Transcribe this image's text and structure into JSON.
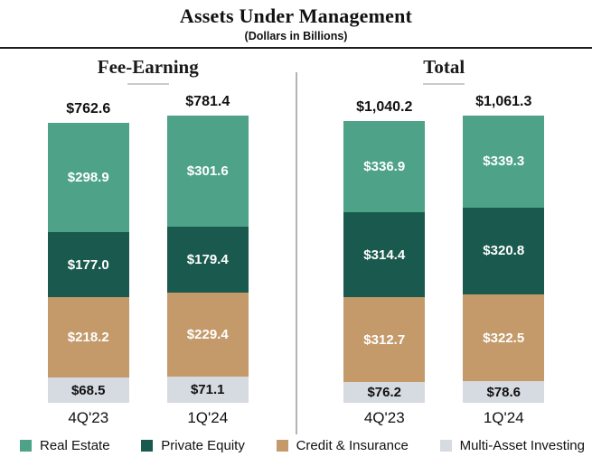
{
  "header": {
    "title": "Assets Under Management",
    "subtitle": "(Dollars in Billions)"
  },
  "colors": {
    "real_estate": "#4DA287",
    "private_equity": "#1A594E",
    "credit_insurance": "#C49A6B",
    "multi_asset": "#D6DAE1",
    "divider": "#B3B3B3",
    "top_rule": "#1C1C1C",
    "header_underline": "#CBCBCB"
  },
  "legend": [
    {
      "key": "real_estate",
      "label": "Real Estate"
    },
    {
      "key": "private_equity",
      "label": "Private Equity"
    },
    {
      "key": "credit_insurance",
      "label": "Credit & Insurance"
    },
    {
      "key": "multi_asset",
      "label": "Multi-Asset Investing"
    }
  ],
  "chart_data": {
    "type": "bar",
    "stacked": true,
    "unit": "USD billions",
    "title": "Assets Under Management",
    "subtitle": "(Dollars in Billions)",
    "legend_position": "bottom",
    "grid": false,
    "segment_order_top_to_bottom": [
      "real_estate",
      "private_equity",
      "credit_insurance",
      "multi_asset"
    ],
    "groups": [
      {
        "name": "Fee-Earning",
        "categories": [
          "4Q'23",
          "1Q'24"
        ],
        "bars": [
          {
            "category": "4Q'23",
            "total": 762.6,
            "total_label": "$762.6",
            "segments": [
              {
                "key": "real_estate",
                "name": "Real Estate",
                "value": 298.9,
                "label": "$298.9"
              },
              {
                "key": "private_equity",
                "name": "Private Equity",
                "value": 177.0,
                "label": "$177.0"
              },
              {
                "key": "credit_insurance",
                "name": "Credit & Insurance",
                "value": 218.2,
                "label": "$218.2"
              },
              {
                "key": "multi_asset",
                "name": "Multi-Asset Investing",
                "value": 68.5,
                "label": "$68.5"
              }
            ]
          },
          {
            "category": "1Q'24",
            "total": 781.4,
            "total_label": "$781.4",
            "segments": [
              {
                "key": "real_estate",
                "name": "Real Estate",
                "value": 301.6,
                "label": "$301.6"
              },
              {
                "key": "private_equity",
                "name": "Private Equity",
                "value": 179.4,
                "label": "$179.4"
              },
              {
                "key": "credit_insurance",
                "name": "Credit & Insurance",
                "value": 229.4,
                "label": "$229.4"
              },
              {
                "key": "multi_asset",
                "name": "Multi-Asset Investing",
                "value": 71.1,
                "label": "$71.1"
              }
            ]
          }
        ]
      },
      {
        "name": "Total",
        "categories": [
          "4Q'23",
          "1Q'24"
        ],
        "bars": [
          {
            "category": "4Q'23",
            "total": 1040.2,
            "total_label": "$1,040.2",
            "segments": [
              {
                "key": "real_estate",
                "name": "Real Estate",
                "value": 336.9,
                "label": "$336.9"
              },
              {
                "key": "private_equity",
                "name": "Private Equity",
                "value": 314.4,
                "label": "$314.4"
              },
              {
                "key": "credit_insurance",
                "name": "Credit & Insurance",
                "value": 312.7,
                "label": "$312.7"
              },
              {
                "key": "multi_asset",
                "name": "Multi-Asset Investing",
                "value": 76.2,
                "label": "$76.2"
              }
            ]
          },
          {
            "category": "1Q'24",
            "total": 1061.3,
            "total_label": "$1,061.3",
            "segments": [
              {
                "key": "real_estate",
                "name": "Real Estate",
                "value": 339.3,
                "label": "$339.3"
              },
              {
                "key": "private_equity",
                "name": "Private Equity",
                "value": 320.8,
                "label": "$320.8"
              },
              {
                "key": "credit_insurance",
                "name": "Credit & Insurance",
                "value": 322.5,
                "label": "$322.5"
              },
              {
                "key": "multi_asset",
                "name": "Multi-Asset Investing",
                "value": 78.6,
                "label": "$78.6"
              }
            ]
          }
        ]
      }
    ]
  }
}
